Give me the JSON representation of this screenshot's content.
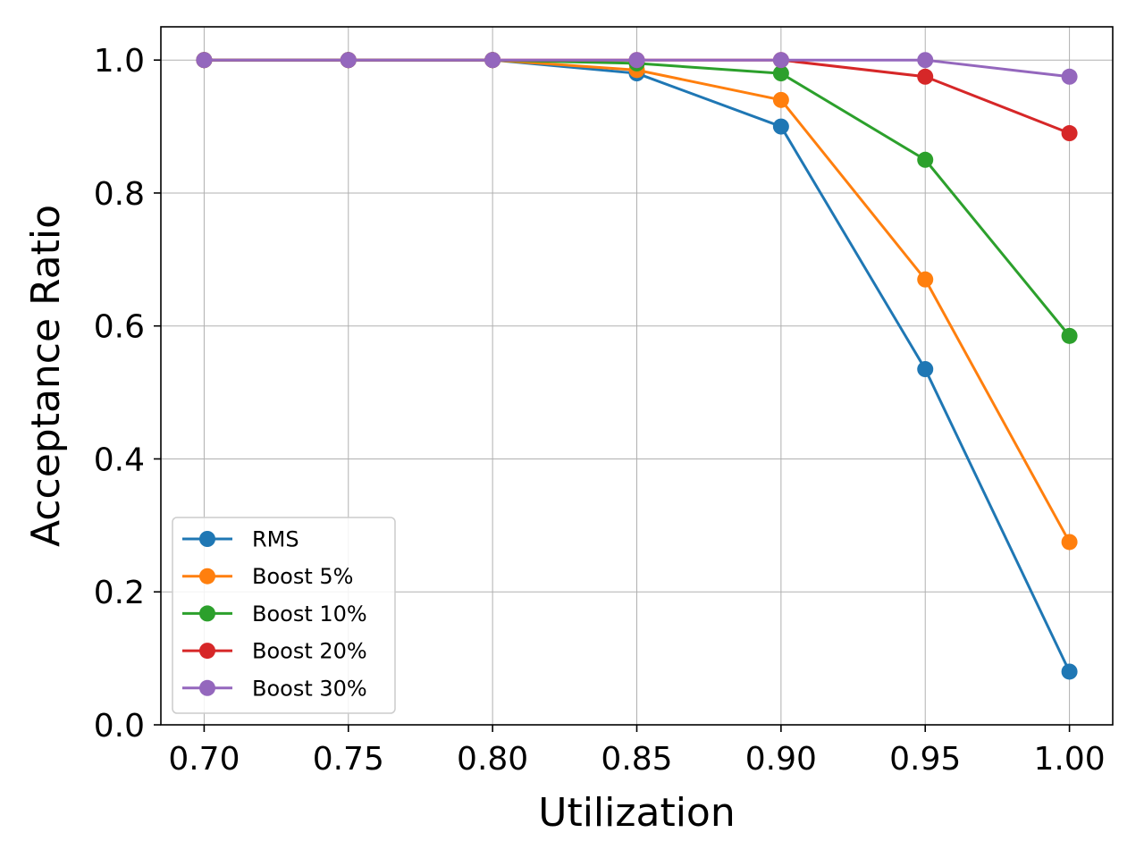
{
  "chart_data": {
    "type": "line",
    "title": "",
    "xlabel": "Utilization",
    "ylabel": "Acceptance Ratio",
    "x": [
      0.7,
      0.75,
      0.8,
      0.85,
      0.9,
      0.95,
      1.0
    ],
    "x_tick_labels": [
      "0.70",
      "0.75",
      "0.80",
      "0.85",
      "0.90",
      "0.95",
      "1.00"
    ],
    "y_ticks": [
      0.0,
      0.2,
      0.4,
      0.6,
      0.8,
      1.0
    ],
    "y_tick_labels": [
      "0.0",
      "0.2",
      "0.4",
      "0.6",
      "0.8",
      "1.0"
    ],
    "xlim": [
      0.685,
      1.015
    ],
    "ylim": [
      0.0,
      1.05
    ],
    "grid": true,
    "legend_position": "lower-left",
    "marker": "circle",
    "series": [
      {
        "name": "RMS",
        "color": "#1f77b4",
        "values": [
          1.0,
          1.0,
          1.0,
          0.98,
          0.9,
          0.535,
          0.08
        ]
      },
      {
        "name": "Boost 5%",
        "color": "#ff7f0e",
        "values": [
          1.0,
          1.0,
          1.0,
          0.985,
          0.94,
          0.67,
          0.275
        ]
      },
      {
        "name": "Boost 10%",
        "color": "#2ca02c",
        "values": [
          1.0,
          1.0,
          1.0,
          0.995,
          0.98,
          0.85,
          0.585
        ]
      },
      {
        "name": "Boost 20%",
        "color": "#d62728",
        "values": [
          1.0,
          1.0,
          1.0,
          1.0,
          1.0,
          0.975,
          0.89
        ]
      },
      {
        "name": "Boost 30%",
        "color": "#9467bd",
        "values": [
          1.0,
          1.0,
          1.0,
          1.0,
          1.0,
          1.0,
          0.975
        ]
      }
    ]
  }
}
